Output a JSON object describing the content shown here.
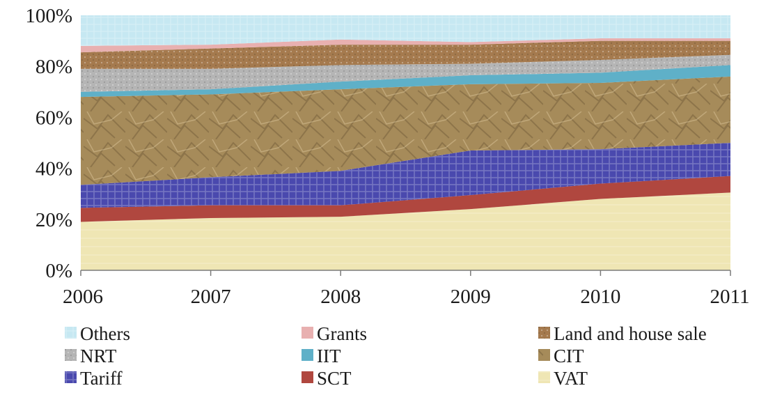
{
  "chart_data": {
    "type": "area",
    "stacked": true,
    "normalized": true,
    "x": [
      "2006",
      "2007",
      "2008",
      "2009",
      "2010",
      "2011"
    ],
    "y_ticks": [
      "0%",
      "20%",
      "40%",
      "60%",
      "80%",
      "100%"
    ],
    "ylim": [
      0,
      100
    ],
    "grid": false,
    "legend_position": "bottom",
    "series": [
      {
        "name": "VAT",
        "values": [
          19,
          20.5,
          21,
          24,
          28,
          30.5
        ],
        "color": "#efe6b4"
      },
      {
        "name": "SCT",
        "values": [
          5.5,
          5,
          4.5,
          5.5,
          6,
          6.5
        ],
        "color": "#b0473f"
      },
      {
        "name": "Tariff",
        "values": [
          9,
          11,
          13.5,
          17.5,
          13.5,
          13
        ],
        "color": "#4a49ae"
      },
      {
        "name": "CIT",
        "values": [
          34.5,
          32.5,
          32,
          26,
          26,
          26
        ],
        "color": "#a68b5a"
      },
      {
        "name": "IIT",
        "values": [
          2,
          2,
          3,
          3.5,
          4,
          4.5
        ],
        "color": "#5fb0c8"
      },
      {
        "name": "NRT",
        "values": [
          9,
          8,
          6.5,
          4.5,
          5,
          4
        ],
        "color": "#b5b5b5"
      },
      {
        "name": "Land and house sale",
        "values": [
          6.5,
          8,
          8,
          7.5,
          7.5,
          5.5
        ],
        "color": "#a57a4e"
      },
      {
        "name": "Grants",
        "values": [
          2.5,
          1.5,
          2,
          1,
          1,
          1
        ],
        "color": "#e8b0b0"
      },
      {
        "name": "Others",
        "values": [
          12,
          11.5,
          9.5,
          10.5,
          9,
          9
        ],
        "color": "#c6e8f2"
      }
    ],
    "legend_order": [
      "Others",
      "Grants",
      "Land and house sale",
      "NRT",
      "IIT",
      "CIT",
      "Tariff",
      "SCT",
      "VAT"
    ]
  }
}
